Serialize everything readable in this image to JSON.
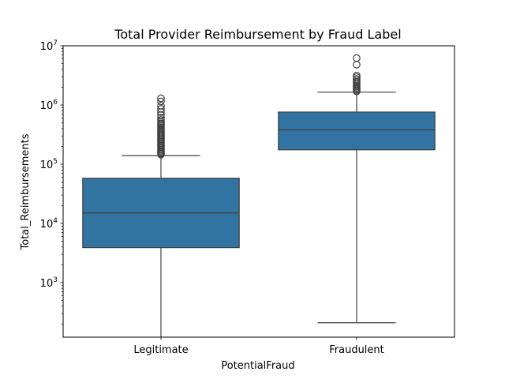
{
  "chart_data": {
    "type": "box",
    "title": "Total Provider Reimbursement by Fraud Label",
    "xlabel": "PotentialFraud",
    "ylabel": "Total_Reimbursements",
    "yscale": "log",
    "ylim": [
      120,
      10000000
    ],
    "yticks": [
      {
        "value": 1000,
        "base": "10",
        "exp": "3"
      },
      {
        "value": 10000,
        "base": "10",
        "exp": "4"
      },
      {
        "value": 100000,
        "base": "10",
        "exp": "5"
      },
      {
        "value": 1000000,
        "base": "10",
        "exp": "6"
      },
      {
        "value": 10000000,
        "base": "10",
        "exp": "7"
      }
    ],
    "grid": false,
    "box_color": "#3274a1",
    "categories": [
      "Legitimate",
      "Fraudulent"
    ],
    "boxes": [
      {
        "category": "Legitimate",
        "whisker_low": 120,
        "q1": 3900,
        "median": 15000,
        "q3": 58000,
        "whisker_high": 140000,
        "outliers": [
          145000,
          152000,
          160000,
          168000,
          176000,
          185000,
          195000,
          205000,
          215000,
          226000,
          238000,
          250000,
          262000,
          275000,
          290000,
          305000,
          320000,
          338000,
          355000,
          375000,
          395000,
          415000,
          440000,
          465000,
          490000,
          520000,
          560000,
          610000,
          680000,
          760000,
          860000,
          970000,
          1150000,
          1300000
        ]
      },
      {
        "category": "Fraudulent",
        "whisker_low": 210,
        "q1": 175000,
        "median": 380000,
        "q3": 760000,
        "whisker_high": 1650000,
        "outliers": [
          1700000,
          1780000,
          1860000,
          1950000,
          2050000,
          2150000,
          2280000,
          2420000,
          2580000,
          2750000,
          2950000,
          3150000,
          4800000,
          6200000
        ]
      }
    ]
  }
}
